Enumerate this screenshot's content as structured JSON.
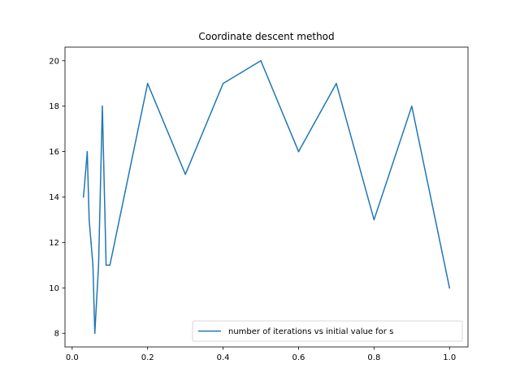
{
  "chart_data": {
    "type": "line",
    "title": "Coordinate descent method",
    "xlabel": "",
    "ylabel": "",
    "xlim": [
      -0.019,
      1.049
    ],
    "ylim": [
      7.4,
      20.6
    ],
    "x_ticks": [
      0.0,
      0.2,
      0.4,
      0.6,
      0.8,
      1.0
    ],
    "x_tick_labels": [
      "0.0",
      "0.2",
      "0.4",
      "0.6",
      "0.8",
      "1.0"
    ],
    "y_ticks": [
      8,
      10,
      12,
      14,
      16,
      18,
      20
    ],
    "y_tick_labels": [
      "8",
      "10",
      "12",
      "14",
      "16",
      "18",
      "20"
    ],
    "grid": false,
    "legend_position": "lower-right",
    "series": [
      {
        "name": "number of iterations vs initial value for s",
        "color": "#1f77b4",
        "x": [
          0.03,
          0.04,
          0.045,
          0.05,
          0.055,
          0.06,
          0.07,
          0.08,
          0.09,
          0.1,
          0.2,
          0.3,
          0.4,
          0.5,
          0.6,
          0.7,
          0.8,
          0.9,
          1.0
        ],
        "y": [
          14,
          16,
          13,
          12,
          11,
          8,
          11,
          18,
          11,
          11,
          19,
          15,
          19,
          20,
          16,
          19,
          13,
          18,
          10
        ]
      }
    ]
  }
}
